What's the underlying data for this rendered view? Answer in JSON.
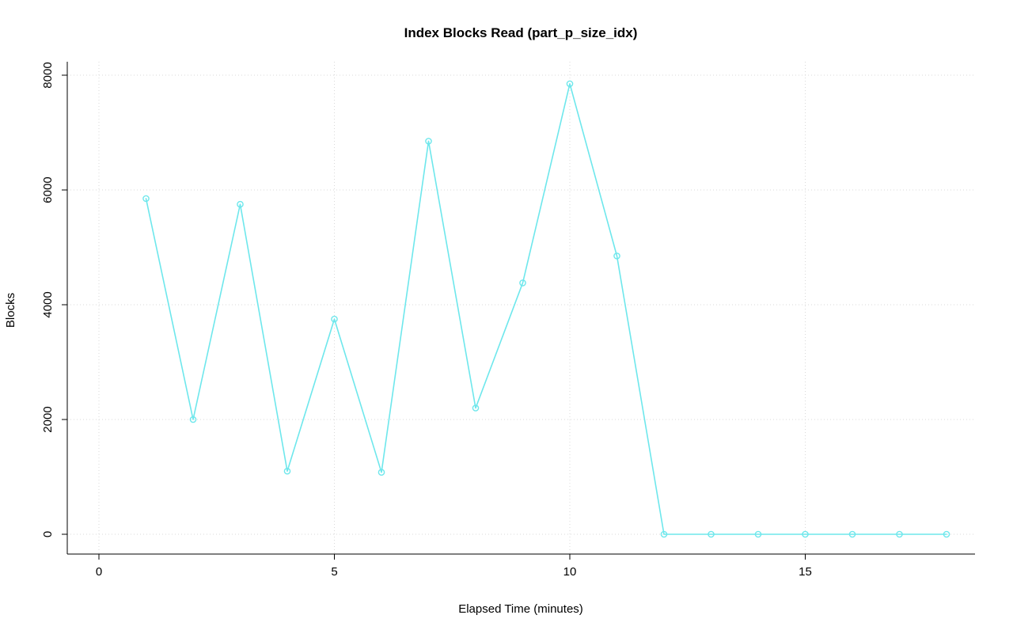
{
  "chart_data": {
    "type": "line",
    "title": "Index Blocks Read (part_p_size_idx)",
    "xlabel": "Elapsed Time (minutes)",
    "ylabel": "Blocks",
    "x": [
      1,
      2,
      3,
      4,
      5,
      6,
      7,
      8,
      9,
      10,
      11,
      12,
      13,
      14,
      15,
      16,
      17,
      18
    ],
    "values": [
      5850,
      2000,
      5750,
      1100,
      3750,
      1080,
      6850,
      2200,
      4380,
      7850,
      4850,
      0,
      0,
      0,
      0,
      0,
      0,
      0
    ],
    "xlim": [
      0,
      18
    ],
    "ylim": [
      0,
      8000
    ],
    "xticks": [
      0,
      5,
      10,
      15
    ],
    "yticks": [
      0,
      2000,
      4000,
      6000,
      8000
    ],
    "grid": true,
    "legend": "none",
    "line_color": "#6ee7ec",
    "marker": "open-circle",
    "grid_color": "#d9d9d9",
    "axis_color": "#000000",
    "background_color": "#ffffff"
  }
}
